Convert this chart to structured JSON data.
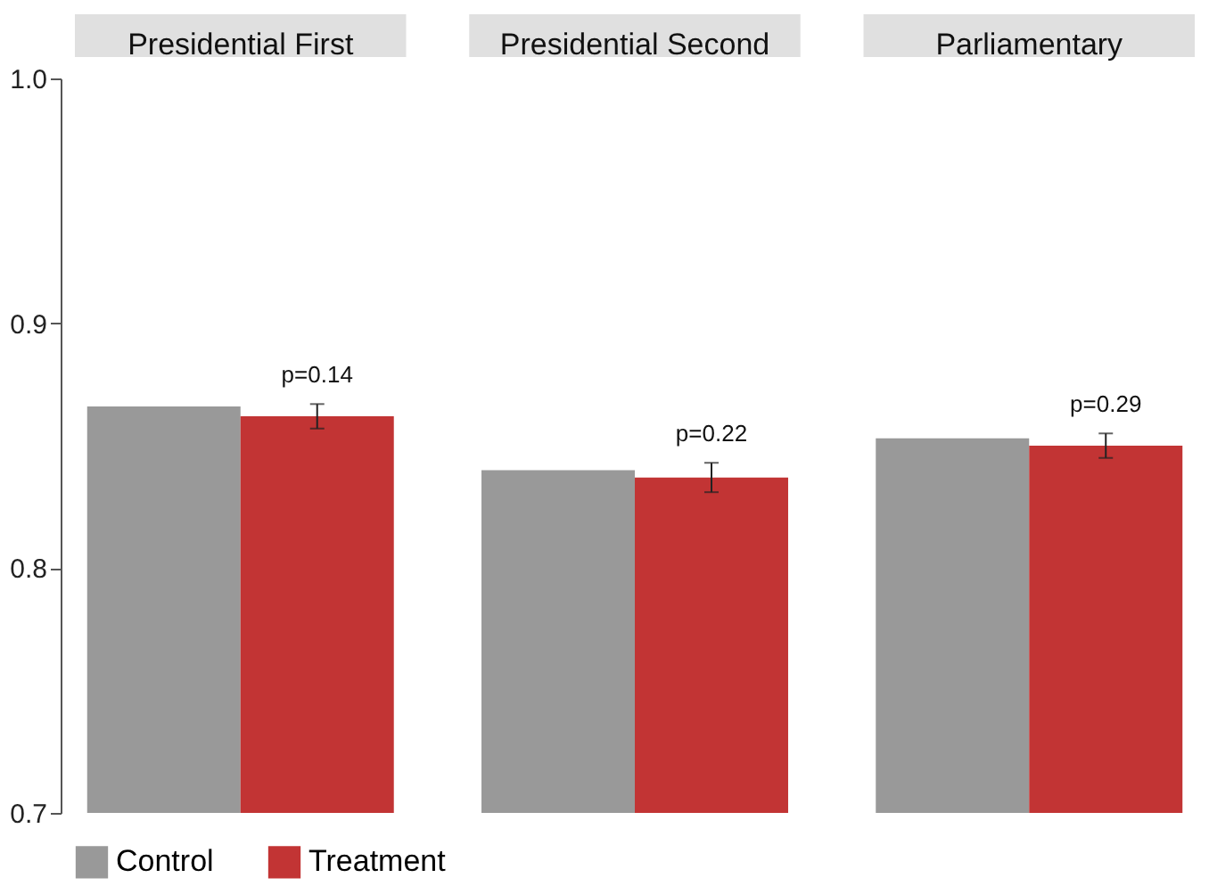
{
  "chart_data": {
    "type": "bar",
    "categories": [
      "Presidential First",
      "Presidential Second",
      "Parliamentary"
    ],
    "ylim": [
      0.7,
      1.0
    ],
    "yticks": [
      0.7,
      0.8,
      0.9,
      {
        "value": 1.0,
        "label": "1.0"
      }
    ],
    "legend": "bottom",
    "grid": false,
    "series": [
      {
        "name": "Control",
        "color": "#999999",
        "values": [
          0.866,
          0.84,
          0.853
        ]
      },
      {
        "name": "Treatment",
        "color": "#c23434",
        "values": [
          0.862,
          0.837,
          0.85
        ],
        "errors": [
          0.005,
          0.006,
          0.005
        ]
      }
    ],
    "annotations": [
      {
        "text": "p=0.14",
        "x": "Presidential First",
        "y": 0.867
      },
      {
        "text": "p=0.22",
        "x": "Presidential Second",
        "y": 0.843
      },
      {
        "text": "p=0.29",
        "x": "Parliamentary",
        "y": 0.855
      }
    ]
  }
}
